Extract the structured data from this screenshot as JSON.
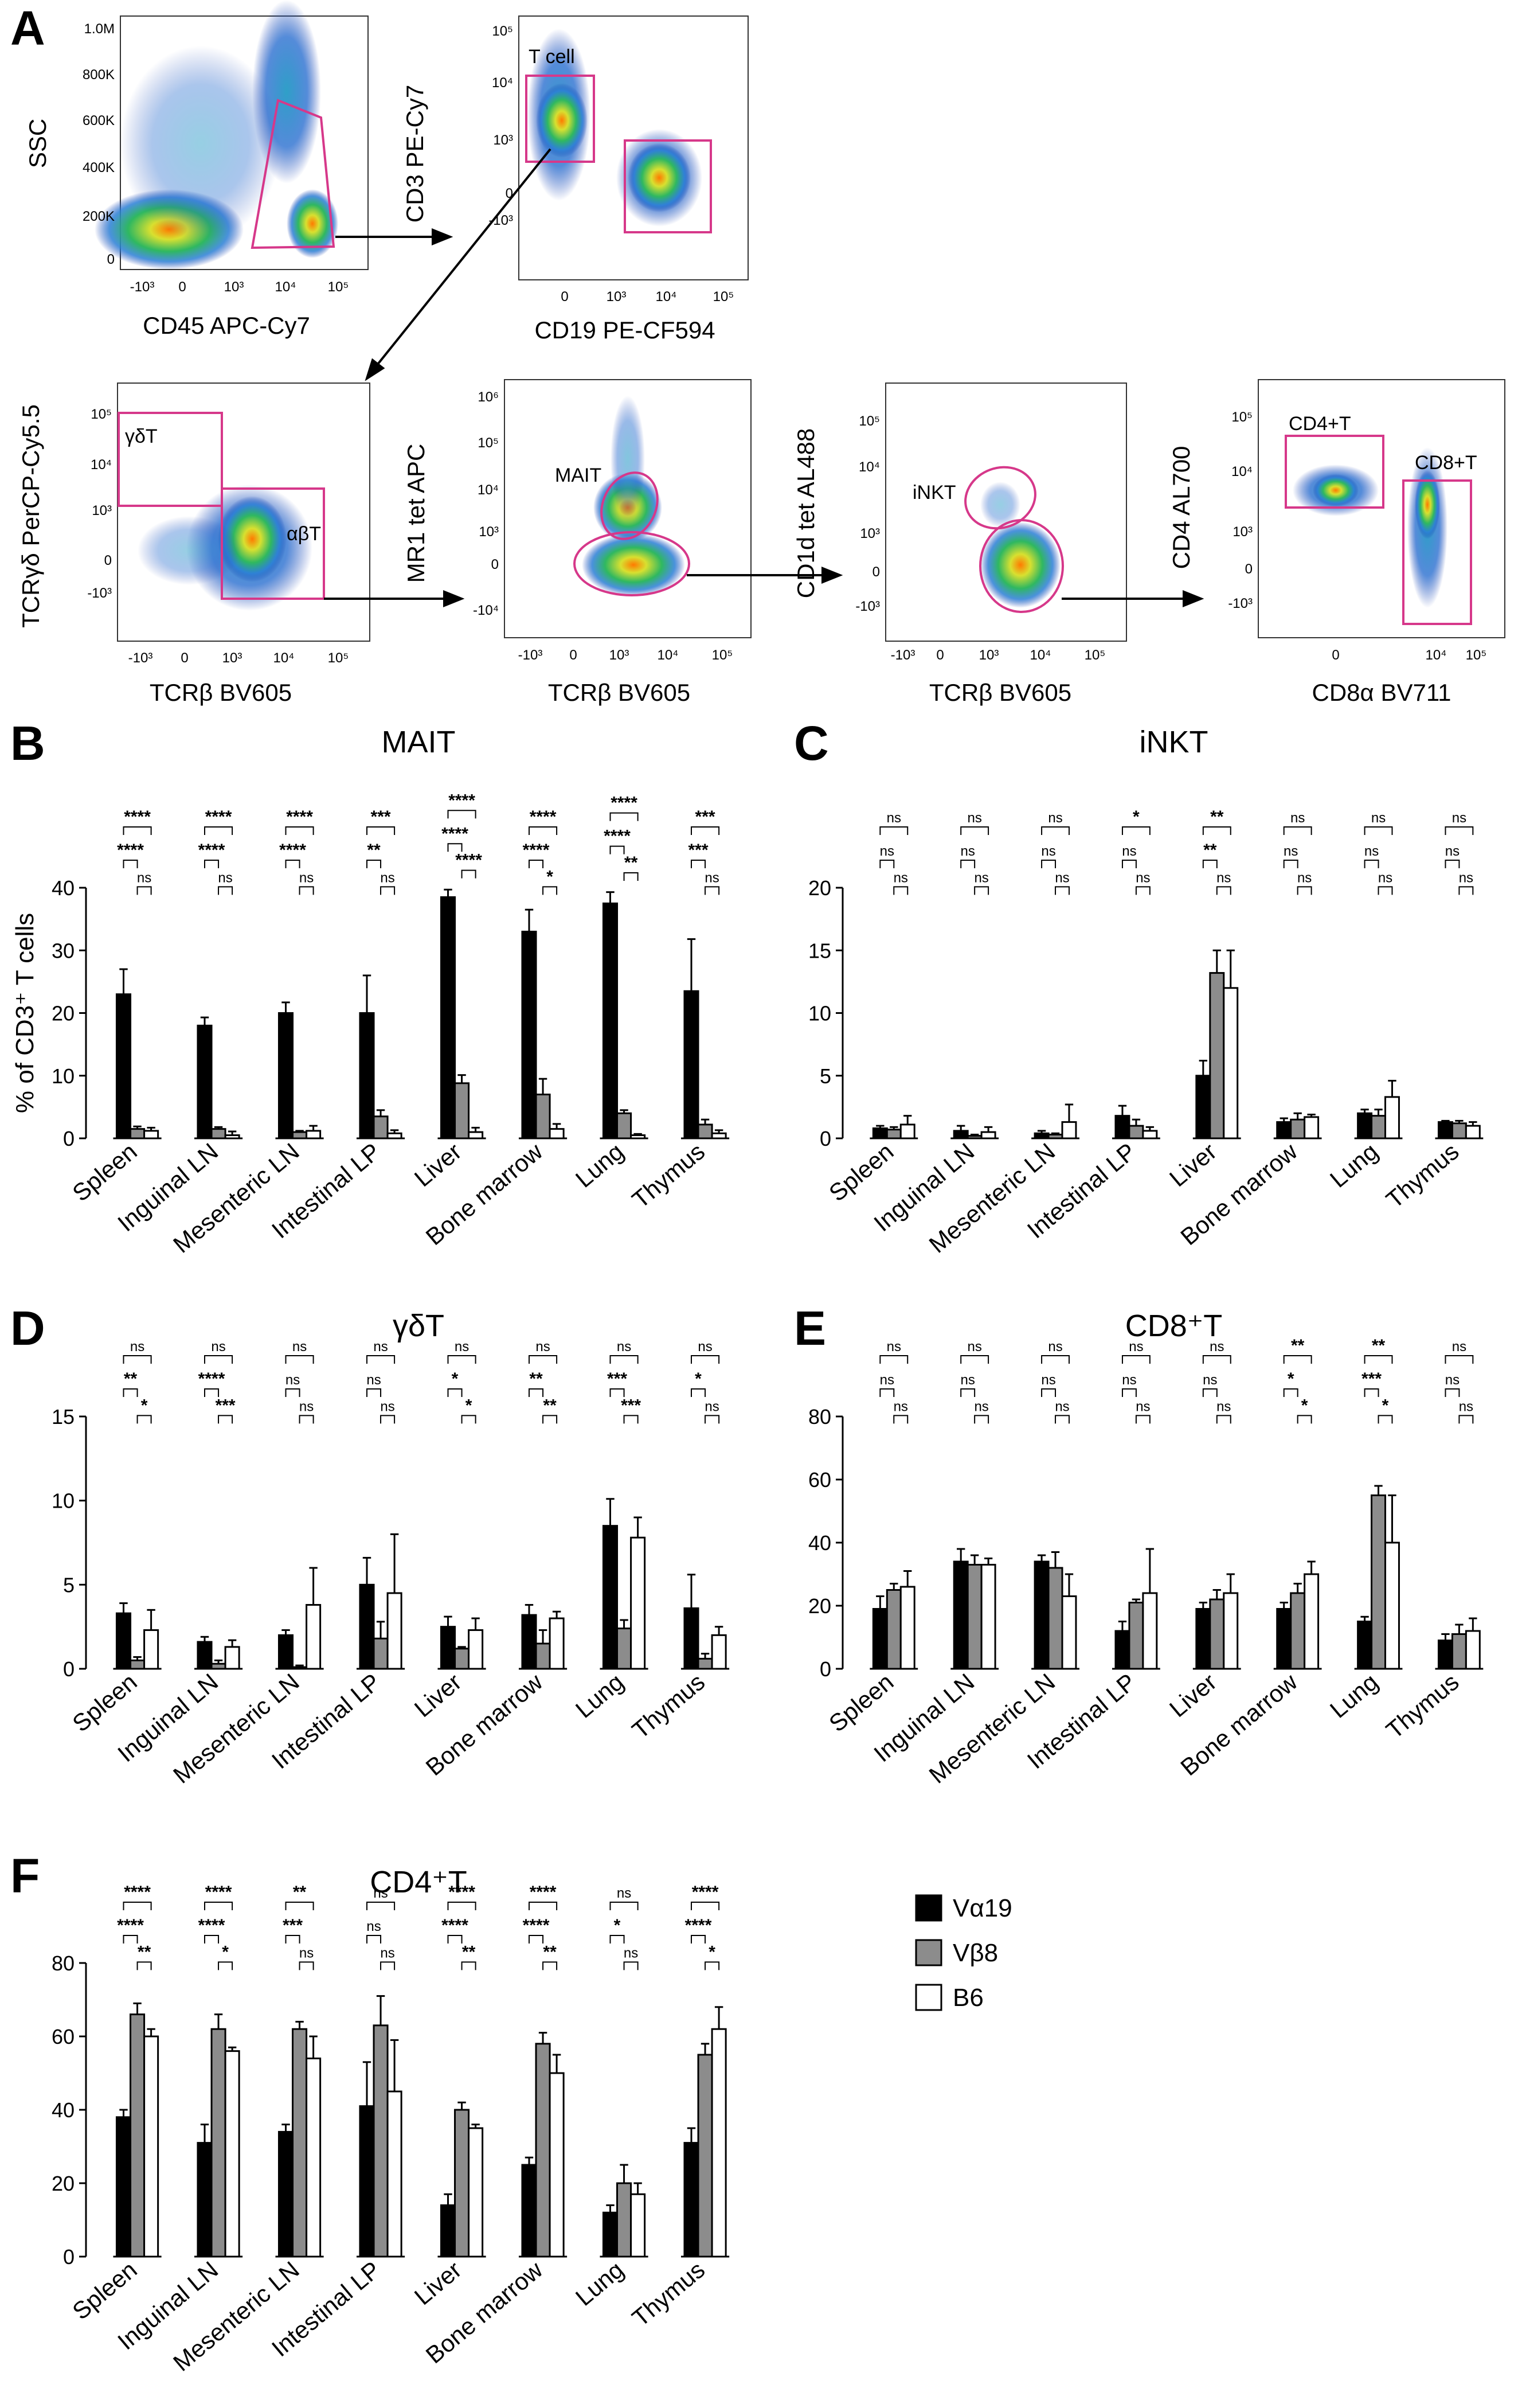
{
  "panel_letters": [
    "A",
    "B",
    "C",
    "D",
    "E",
    "F"
  ],
  "flow": {
    "plots": [
      {
        "x_label": "CD45 APC-Cy7",
        "y_label": "SSC",
        "x_ticks": [
          "-10³",
          "0",
          "10³",
          "10⁴",
          "10⁵"
        ],
        "y_ticks": [
          "1.0M",
          "800K",
          "600K",
          "400K",
          "200K",
          "0"
        ],
        "gates": []
      },
      {
        "x_label": "CD19 PE-CF594",
        "y_label": "CD3 PE-Cy7",
        "x_ticks": [
          "0",
          "10³",
          "10⁴",
          "10⁵"
        ],
        "y_ticks": [
          "10⁵",
          "10⁴",
          "10³",
          "0",
          "-10³"
        ],
        "gates": [
          "T cell"
        ]
      },
      {
        "x_label": "TCRβ BV605",
        "y_label": "TCRγδ PerCP-Cy5.5",
        "x_ticks": [
          "-10³",
          "0",
          "10³",
          "10⁴",
          "10⁵"
        ],
        "y_ticks": [
          "10⁵",
          "10⁴",
          "10³",
          "0",
          "-10³"
        ],
        "gates": [
          "γδT",
          "αβT"
        ]
      },
      {
        "x_label": "TCRβ BV605",
        "y_label": "MR1 tet APC",
        "x_ticks": [
          "-10³",
          "0",
          "10³",
          "10⁴",
          "10⁵"
        ],
        "y_ticks": [
          "10⁶",
          "10⁵",
          "10⁴",
          "10³",
          "0",
          "-10⁴"
        ],
        "gates": [
          "MAIT"
        ]
      },
      {
        "x_label": "TCRβ BV605",
        "y_label": "CD1d tet AL488",
        "x_ticks": [
          "-10³",
          "0",
          "10³",
          "10⁴",
          "10⁵"
        ],
        "y_ticks": [
          "10⁵",
          "10⁴",
          "10³",
          "0",
          "-10³"
        ],
        "gates": [
          "iNKT"
        ]
      },
      {
        "x_label": "CD8α BV711",
        "y_label": "CD4 AL700",
        "x_ticks": [
          "0",
          "10⁴",
          "10⁵"
        ],
        "y_ticks": [
          "10⁵",
          "10⁴",
          "10³",
          "0",
          "-10³"
        ],
        "gates": [
          "CD4+T",
          "CD8+T"
        ]
      }
    ]
  },
  "legend": {
    "items": [
      {
        "label": "Vα19",
        "color": "#000000"
      },
      {
        "label": "Vβ8",
        "color": "#8c8c8c"
      },
      {
        "label": "B6",
        "color": "#ffffff"
      }
    ]
  },
  "chart_data": [
    {
      "type": "bar",
      "panel": "B",
      "title": "MAIT",
      "ylabel": "% of CD3⁺ T cells",
      "xlabel": "",
      "categories": [
        "Spleen",
        "Inguinal LN",
        "Mesenteric LN",
        "Intestinal LP",
        "Liver",
        "Bone marrow",
        "Lung",
        "Thymus"
      ],
      "ylim": [
        0,
        40
      ],
      "yticks": [
        0,
        10,
        20,
        30,
        40
      ],
      "series": [
        {
          "name": "Vα19",
          "values": [
            23,
            18,
            20,
            20,
            38.5,
            33,
            37.5,
            23.5
          ],
          "errors": [
            4,
            1.3,
            1.7,
            6,
            1.2,
            3.5,
            1.8,
            8.3
          ]
        },
        {
          "name": "Vβ8",
          "values": [
            1.5,
            1.5,
            1,
            3.5,
            8.8,
            7,
            4,
            2.2
          ],
          "errors": [
            0.4,
            0.3,
            0.2,
            1,
            1.3,
            2.5,
            0.5,
            0.8
          ]
        },
        {
          "name": "B6",
          "values": [
            1.2,
            0.5,
            1.2,
            0.8,
            1,
            1.5,
            0.5,
            0.8
          ],
          "errors": [
            0.5,
            0.6,
            0.8,
            0.5,
            0.7,
            0.8,
            0.2,
            0.5
          ]
        }
      ],
      "significance": [
        [
          "****",
          "****",
          "ns"
        ],
        [
          "****",
          "****",
          "ns"
        ],
        [
          "****",
          "****",
          "ns"
        ],
        [
          "***",
          "**",
          "ns"
        ],
        [
          "****",
          "****",
          "****"
        ],
        [
          "****",
          "****",
          "*"
        ],
        [
          "****",
          "****",
          "**"
        ],
        [
          "***",
          "***",
          "ns"
        ]
      ]
    },
    {
      "type": "bar",
      "panel": "C",
      "title": "iNKT",
      "ylabel": "",
      "xlabel": "",
      "categories": [
        "Spleen",
        "Inguinal LN",
        "Mesenteric LN",
        "Intestinal LP",
        "Liver",
        "Bone marrow",
        "Lung",
        "Thymus"
      ],
      "ylim": [
        0,
        20
      ],
      "yticks": [
        0,
        5,
        10,
        15,
        20
      ],
      "series": [
        {
          "name": "Vα19",
          "values": [
            0.8,
            0.6,
            0.4,
            1.8,
            5,
            1.3,
            2,
            1.3
          ],
          "errors": [
            0.2,
            0.4,
            0.2,
            0.8,
            1.2,
            0.3,
            0.3,
            0.1
          ]
        },
        {
          "name": "Vβ8",
          "values": [
            0.7,
            0.2,
            0.3,
            1,
            13.2,
            1.5,
            1.8,
            1.2
          ],
          "errors": [
            0.2,
            0.1,
            0.1,
            0.5,
            1.8,
            0.5,
            0.5,
            0.2
          ]
        },
        {
          "name": "B6",
          "values": [
            1.1,
            0.5,
            1.3,
            0.6,
            12,
            1.7,
            3.3,
            1
          ],
          "errors": [
            0.7,
            0.4,
            1.4,
            0.3,
            3,
            0.2,
            1.3,
            0.3
          ]
        }
      ],
      "significance": [
        [
          "ns",
          "ns",
          "ns"
        ],
        [
          "ns",
          "ns",
          "ns"
        ],
        [
          "ns",
          "ns",
          "ns"
        ],
        [
          "*",
          "ns",
          "ns"
        ],
        [
          "**",
          "**",
          "ns"
        ],
        [
          "ns",
          "ns",
          "ns"
        ],
        [
          "ns",
          "ns",
          "ns"
        ],
        [
          "ns",
          "ns",
          "ns"
        ]
      ]
    },
    {
      "type": "bar",
      "panel": "D",
      "title": "γδT",
      "ylabel": "",
      "xlabel": "",
      "categories": [
        "Spleen",
        "Inguinal LN",
        "Mesenteric LN",
        "Intestinal LP",
        "Liver",
        "Bone marrow",
        "Lung",
        "Thymus"
      ],
      "ylim": [
        0,
        15
      ],
      "yticks": [
        0,
        5,
        10,
        15
      ],
      "series": [
        {
          "name": "Vα19",
          "values": [
            3.3,
            1.6,
            2,
            5,
            2.5,
            3.2,
            8.5,
            3.6
          ],
          "errors": [
            0.6,
            0.3,
            0.3,
            1.6,
            0.6,
            0.6,
            1.6,
            2
          ]
        },
        {
          "name": "Vβ8",
          "values": [
            0.5,
            0.3,
            0.1,
            1.8,
            1.2,
            1.5,
            2.4,
            0.6
          ],
          "errors": [
            0.2,
            0.2,
            0.1,
            1,
            0.1,
            0.8,
            0.5,
            0.3
          ]
        },
        {
          "name": "B6",
          "values": [
            2.3,
            1.3,
            3.8,
            4.5,
            2.3,
            3,
            7.8,
            2
          ],
          "errors": [
            1.2,
            0.4,
            2.2,
            3.5,
            0.7,
            0.4,
            1.2,
            0.5
          ]
        }
      ],
      "significance": [
        [
          "ns",
          "**",
          "*"
        ],
        [
          "ns",
          "****",
          "***"
        ],
        [
          "ns",
          "ns",
          "ns"
        ],
        [
          "ns",
          "ns",
          "ns"
        ],
        [
          "ns",
          "*",
          "*"
        ],
        [
          "ns",
          "**",
          "**"
        ],
        [
          "ns",
          "***",
          "***"
        ],
        [
          "ns",
          "*",
          "ns"
        ]
      ]
    },
    {
      "type": "bar",
      "panel": "E",
      "title": "CD8⁺T",
      "ylabel": "",
      "xlabel": "",
      "categories": [
        "Spleen",
        "Inguinal LN",
        "Mesenteric LN",
        "Intestinal LP",
        "Liver",
        "Bone marrow",
        "Lung",
        "Thymus"
      ],
      "ylim": [
        0,
        80
      ],
      "yticks": [
        0,
        20,
        40,
        60,
        80
      ],
      "series": [
        {
          "name": "Vα19",
          "values": [
            19,
            34,
            34,
            12,
            19,
            19,
            15,
            9
          ],
          "errors": [
            4,
            4,
            2,
            3,
            2,
            2,
            1.5,
            2
          ]
        },
        {
          "name": "Vβ8",
          "values": [
            25,
            33,
            32,
            21,
            22,
            24,
            55,
            11
          ],
          "errors": [
            2,
            3,
            5,
            1,
            3,
            3,
            3,
            3
          ]
        },
        {
          "name": "B6",
          "values": [
            26,
            33,
            23,
            24,
            24,
            30,
            40,
            12
          ],
          "errors": [
            5,
            2,
            7,
            14,
            6,
            4,
            15,
            4
          ]
        }
      ],
      "significance": [
        [
          "ns",
          "ns",
          "ns"
        ],
        [
          "ns",
          "ns",
          "ns"
        ],
        [
          "ns",
          "ns",
          "ns"
        ],
        [
          "ns",
          "ns",
          "ns"
        ],
        [
          "ns",
          "ns",
          "ns"
        ],
        [
          "**",
          "*",
          "*"
        ],
        [
          "**",
          "***",
          "*"
        ],
        [
          "ns",
          "ns",
          "ns"
        ]
      ]
    },
    {
      "type": "bar",
      "panel": "F",
      "title": "CD4⁺T",
      "ylabel": "",
      "xlabel": "",
      "categories": [
        "Spleen",
        "Inguinal LN",
        "Mesenteric LN",
        "Intestinal LP",
        "Liver",
        "Bone marrow",
        "Lung",
        "Thymus"
      ],
      "ylim": [
        0,
        80
      ],
      "yticks": [
        0,
        20,
        40,
        60,
        80
      ],
      "series": [
        {
          "name": "Vα19",
          "values": [
            38,
            31,
            34,
            41,
            14,
            25,
            12,
            31
          ],
          "errors": [
            2,
            5,
            2,
            12,
            3,
            2,
            2,
            4
          ]
        },
        {
          "name": "Vβ8",
          "values": [
            66,
            62,
            62,
            63,
            40,
            58,
            20,
            55
          ],
          "errors": [
            3,
            4,
            2,
            8,
            2,
            3,
            5,
            3
          ]
        },
        {
          "name": "B6",
          "values": [
            60,
            56,
            54,
            45,
            35,
            50,
            17,
            62
          ],
          "errors": [
            2,
            1,
            6,
            14,
            1,
            5,
            3,
            6
          ]
        }
      ],
      "significance": [
        [
          "****",
          "****",
          "**"
        ],
        [
          "****",
          "****",
          "*"
        ],
        [
          "**",
          "***",
          "ns"
        ],
        [
          "ns",
          "ns",
          "ns"
        ],
        [
          "****",
          "****",
          "**"
        ],
        [
          "****",
          "****",
          "**"
        ],
        [
          "ns",
          "*",
          "ns"
        ],
        [
          "****",
          "****",
          "*"
        ]
      ]
    }
  ]
}
